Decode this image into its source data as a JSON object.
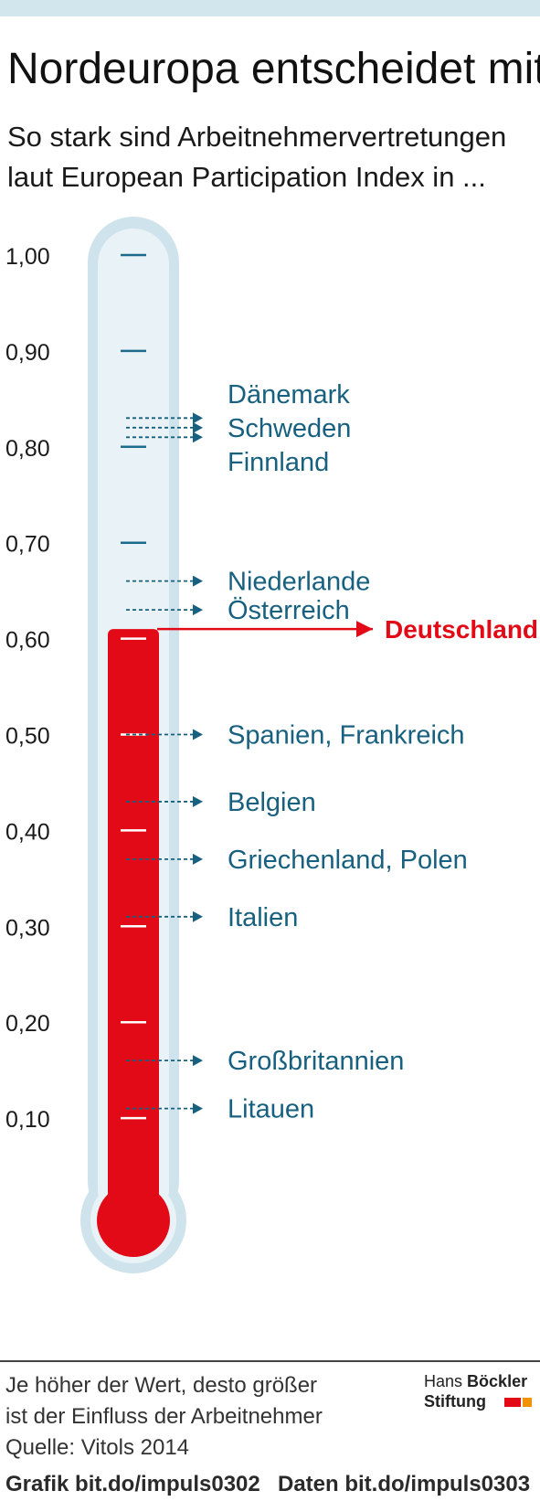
{
  "header": {
    "title": "Nordeuropa entscheidet mit",
    "subtitle": "So stark sind Arbeitnehmervertretungen laut European Participation Index in ..."
  },
  "chart_data": {
    "type": "thermometer",
    "title": "Nordeuropa entscheidet mit",
    "subtitle": "So stark sind Arbeitnehmervertretungen laut European Participation Index in ...",
    "ylim": [
      0,
      1
    ],
    "y_ticks": [
      "1,00",
      "0,90",
      "0,80",
      "0,70",
      "0,60",
      "0,50",
      "0,40",
      "0,30",
      "0,20",
      "0,10"
    ],
    "grid": false,
    "highlight": {
      "label": "Deutschland",
      "value": 0.61
    },
    "entries": [
      {
        "labels": [
          "Dänemark",
          "Schweden",
          "Finnland"
        ],
        "values": [
          0.83,
          0.82,
          0.81
        ]
      },
      {
        "labels": [
          "Niederlande"
        ],
        "values": [
          0.66
        ]
      },
      {
        "labels": [
          "Österreich"
        ],
        "values": [
          0.63
        ]
      },
      {
        "labels": [
          "Spanien, Frankreich"
        ],
        "values": [
          0.5
        ]
      },
      {
        "labels": [
          "Belgien"
        ],
        "values": [
          0.43
        ]
      },
      {
        "labels": [
          "Griechenland, Polen"
        ],
        "values": [
          0.37
        ]
      },
      {
        "labels": [
          "Italien"
        ],
        "values": [
          0.31
        ]
      },
      {
        "labels": [
          "Großbritannien"
        ],
        "values": [
          0.16
        ]
      },
      {
        "labels": [
          "Litauen"
        ],
        "values": [
          0.11
        ]
      }
    ]
  },
  "colors": {
    "highlight": "#e30a17",
    "tube": "#cfe3ec",
    "tube_inner": "#e9f2f6",
    "label": "#17607f",
    "tick": "#1d6b8c"
  },
  "footer": {
    "note_line1": "Je höher der Wert, desto größer",
    "note_line2": "ist der Einfluss der Arbeitnehmer",
    "source": "Quelle: Vitols 2014",
    "grafik_link": "Grafik bit.do/impuls0302",
    "daten_link": "Daten bit.do/impuls0303",
    "logo_hans": "Hans",
    "logo_boeckler": "Böckler",
    "logo_stiftung": "Stiftung",
    "logo_colors": [
      "#e30a17",
      "#f39200"
    ]
  }
}
